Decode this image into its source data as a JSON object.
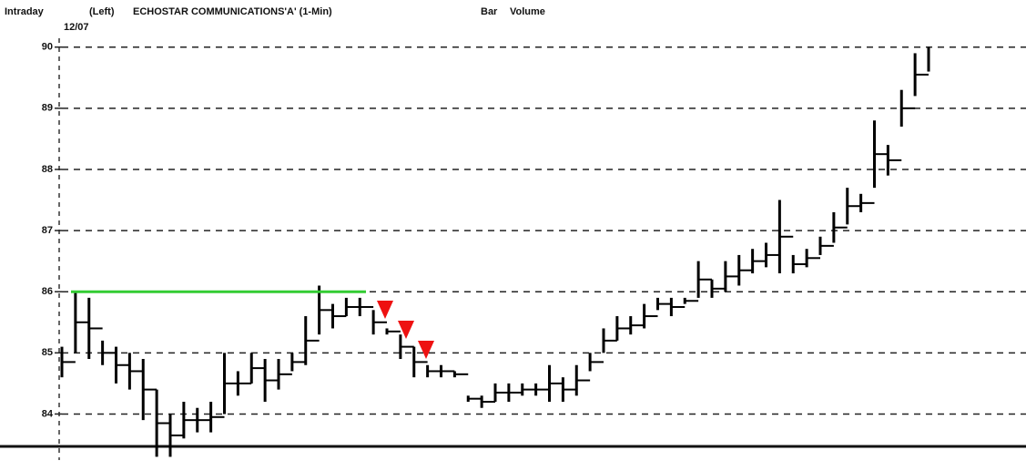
{
  "chart_data": {
    "type": "hilo",
    "header": {
      "mode": "Intraday",
      "side": "(Left)",
      "title": "ECHOSTAR COMMUNICATIONS'A' (1-Min)",
      "style": "Bar",
      "volume": "Volume",
      "date": "12/07"
    },
    "series": [
      {
        "name": null,
        "color": "#000000",
        "high": [
          85.1,
          86.0,
          85.9,
          85.2,
          85.1,
          85.0,
          84.9,
          84.4,
          84.0,
          84.2,
          84.1,
          84.2,
          85.0,
          84.7,
          85.0,
          84.9,
          84.9,
          85.0,
          85.6,
          86.1,
          85.8,
          85.9,
          85.9,
          85.7,
          85.4,
          85.3,
          85.1,
          84.8,
          84.8,
          84.7,
          84.3,
          84.3,
          84.5,
          84.5,
          84.5,
          84.5,
          84.8,
          84.6,
          84.8,
          85.0,
          85.4,
          85.6,
          85.6,
          85.8,
          85.9,
          85.9,
          85.9,
          86.5,
          86.2,
          86.5,
          86.6,
          86.7,
          86.8,
          87.5,
          86.6,
          86.7,
          86.9,
          87.3,
          87.7,
          87.6,
          88.8,
          88.4,
          89.3,
          89.9,
          90.0
        ],
        "low": [
          84.6,
          85.0,
          84.9,
          84.8,
          84.5,
          84.4,
          83.9,
          83.3,
          83.3,
          83.6,
          83.7,
          83.7,
          84.0,
          84.3,
          84.5,
          84.2,
          84.4,
          84.7,
          84.8,
          85.3,
          85.4,
          85.6,
          85.6,
          85.3,
          85.3,
          84.9,
          84.6,
          84.6,
          84.6,
          84.6,
          84.2,
          84.1,
          84.2,
          84.2,
          84.3,
          84.3,
          84.2,
          84.2,
          84.3,
          84.7,
          85.0,
          85.2,
          85.3,
          85.4,
          85.7,
          85.6,
          85.8,
          85.9,
          85.9,
          86.0,
          86.1,
          86.3,
          86.4,
          86.3,
          86.3,
          86.4,
          86.6,
          86.8,
          87.1,
          87.3,
          87.7,
          87.9,
          88.7,
          89.2,
          89.6
        ]
      }
    ],
    "ylim": [
      83.5,
      90.1
    ],
    "yticks": [
      84,
      85,
      86,
      87,
      88,
      89,
      90
    ],
    "grid": true,
    "reference_lines": [
      {
        "value": 86,
        "color": "#33cc33"
      }
    ],
    "marker_color": "#ee1111"
  }
}
